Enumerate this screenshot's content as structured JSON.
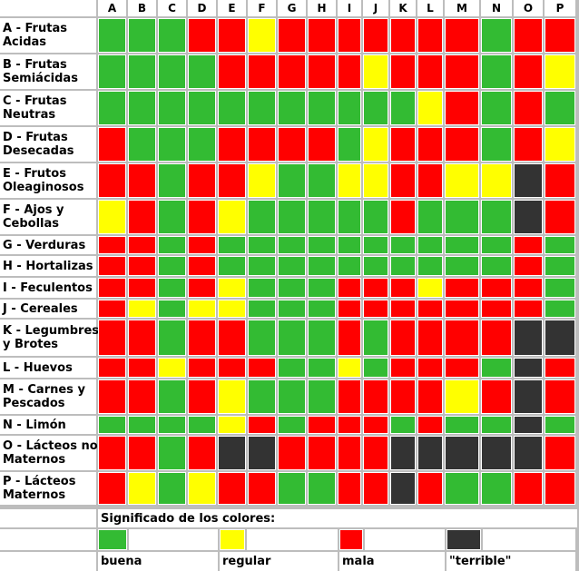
{
  "colors": {
    "G": "#33bb33",
    "Y": "#ffff00",
    "R": "#ff0000",
    "B": "#333333"
  },
  "columns": [
    "A",
    "B",
    "C",
    "D",
    "E",
    "F",
    "G",
    "H",
    "I",
    "J",
    "K",
    "L",
    "M",
    "N",
    "O",
    "P"
  ],
  "rows": [
    {
      "label": "A - Frutas\nAcidas",
      "cells": "GGGRRYRRRRRRRGRR"
    },
    {
      "label": "B - Frutas\nSemiácidas",
      "cells": "GGGGRRRRRYRRRGRY"
    },
    {
      "label": "C - Frutas\nNeutras",
      "cells": "GGGGGGGGGGGYRGRG"
    },
    {
      "label": "D - Frutas\nDesecadas",
      "cells": "RGGGRRRRGYRRRGRY"
    },
    {
      "label": "E - Frutos\nOleaginosos",
      "cells": "RRGRRYGGYYRRYYBR"
    },
    {
      "label": "F - Ajos y\nCebollas",
      "cells": "YRGRYGGGGGRGGGBR"
    },
    {
      "label": "G - Verduras",
      "cells": "RRGRGGGGGGGGGGRG"
    },
    {
      "label": "H - Hortalizas",
      "cells": "RRGRGGGGGGGGGGRG"
    },
    {
      "label": "I - Feculentos",
      "cells": "RRGRYGGGRRRYRRRG"
    },
    {
      "label": "J - Cereales",
      "cells": "RYGYYGGGRRRRRRRG"
    },
    {
      "label": "K - Legumbres\ny Brotes",
      "cells": "RRGRRGGGRGRRRRBB"
    },
    {
      "label": "L - Huevos",
      "cells": "RRYRRRGGYGRRRGBR"
    },
    {
      "label": "M - Carnes y\nPescados",
      "cells": "RRGRYGGGRRRRYRBR"
    },
    {
      "label": "N - Limón",
      "cells": "GGGGYRGRRRGRGGBG"
    },
    {
      "label": "O - Lácteos no\nMaternos",
      "cells": "RRGRBBRRRRBBBBBR"
    },
    {
      "label": "P - Lácteos\nMaternos",
      "cells": "RYGYRRGGRRBRGGRR"
    }
  ],
  "legend": {
    "title": "Significado de los colores:",
    "items": [
      {
        "key": "G",
        "label": "buena"
      },
      {
        "key": "Y",
        "label": "regular"
      },
      {
        "key": "R",
        "label": "mala"
      },
      {
        "key": "B",
        "label": "\"terrible\""
      }
    ]
  }
}
